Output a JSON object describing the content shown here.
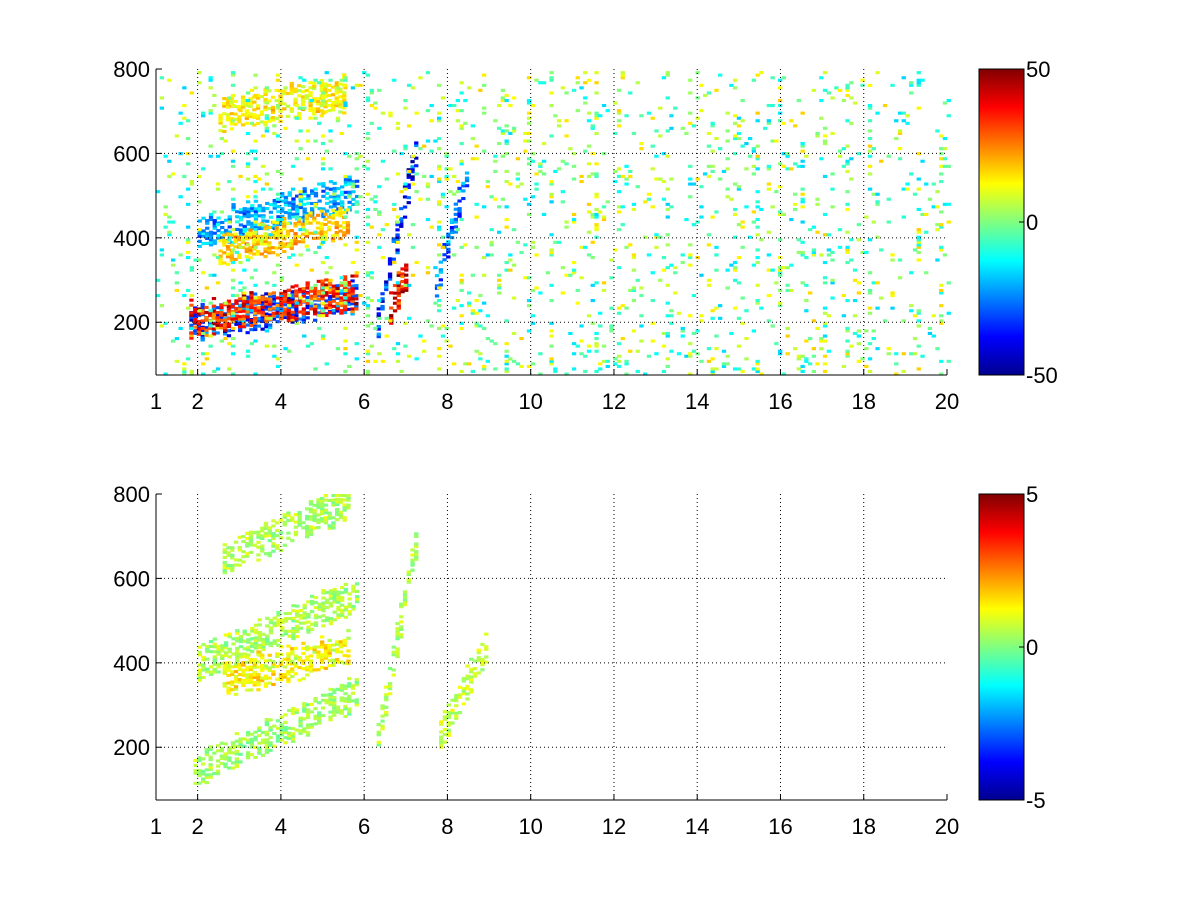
{
  "chart_data": [
    {
      "type": "heatmap",
      "title": "",
      "xlabel": "",
      "ylabel": "",
      "xlim": [
        1,
        20
      ],
      "ylim": [
        75,
        800
      ],
      "x_ticks": [
        1,
        2,
        4,
        6,
        8,
        10,
        12,
        14,
        16,
        18,
        20
      ],
      "x_tick_labels": [
        "1",
        "2",
        "4",
        "6",
        "8",
        "10",
        "12",
        "14",
        "16",
        "18",
        "20"
      ],
      "y_ticks": [
        200,
        400,
        600,
        800
      ],
      "y_tick_labels": [
        "200",
        "400",
        "600",
        "800"
      ],
      "grid": true,
      "colormap": "jet",
      "clim": [
        -50,
        50
      ],
      "colorbar_ticks": [
        -50,
        0,
        50
      ],
      "colorbar_tick_labels": [
        "-50",
        "0",
        "50"
      ],
      "features": [
        {
          "x": [
            1.8,
            5.8
          ],
          "y_start": 195,
          "y_end": 260,
          "value": -35
        },
        {
          "x": [
            1.8,
            5.8
          ],
          "y_start": 205,
          "y_end": 270,
          "value": 40
        },
        {
          "x": [
            2.0,
            5.8
          ],
          "y_start": 410,
          "y_end": 510,
          "value": -25
        },
        {
          "x": [
            2.5,
            5.6
          ],
          "y_start": 370,
          "y_end": 440,
          "value": 20
        },
        {
          "x": [
            2.5,
            5.5
          ],
          "y_start": 690,
          "y_end": 740,
          "value": 15
        },
        {
          "x": [
            6.3,
            7.2
          ],
          "y_start": 200,
          "y_end": 600,
          "value": -40
        },
        {
          "x": [
            6.6,
            7.0
          ],
          "y_start": 240,
          "y_end": 320,
          "value": 45
        },
        {
          "x": [
            7.7,
            8.5
          ],
          "y_start": 280,
          "y_end": 580,
          "value": -30
        }
      ]
    },
    {
      "type": "heatmap",
      "title": "",
      "xlabel": "",
      "ylabel": "",
      "xlim": [
        1,
        20
      ],
      "ylim": [
        75,
        800
      ],
      "x_ticks": [
        1,
        2,
        4,
        6,
        8,
        10,
        12,
        14,
        16,
        18,
        20
      ],
      "x_tick_labels": [
        "1",
        "2",
        "4",
        "6",
        "8",
        "10",
        "12",
        "14",
        "16",
        "18",
        "20"
      ],
      "y_ticks": [
        200,
        400,
        600,
        800
      ],
      "y_tick_labels": [
        "200",
        "400",
        "600",
        "800"
      ],
      "grid": true,
      "colormap": "jet",
      "clim": [
        -5,
        5
      ],
      "colorbar_ticks": [
        -5,
        0,
        5
      ],
      "colorbar_tick_labels": [
        "-5",
        "0",
        "5"
      ],
      "features": [
        {
          "x": [
            1.9,
            5.8
          ],
          "y_start": 140,
          "y_end": 330,
          "value": 0.4
        },
        {
          "x": [
            2.0,
            5.8
          ],
          "y_start": 400,
          "y_end": 560,
          "value": 0.5
        },
        {
          "x": [
            2.6,
            5.6
          ],
          "y_start": 360,
          "y_end": 430,
          "value": 1.4
        },
        {
          "x": [
            2.6,
            5.6
          ],
          "y_start": 650,
          "y_end": 780,
          "value": 0.5
        },
        {
          "x": [
            6.3,
            7.2
          ],
          "y_start": 220,
          "y_end": 680,
          "value": 0.6
        },
        {
          "x": [
            7.8,
            8.9
          ],
          "y_start": 230,
          "y_end": 440,
          "value": 0.8
        }
      ]
    }
  ]
}
